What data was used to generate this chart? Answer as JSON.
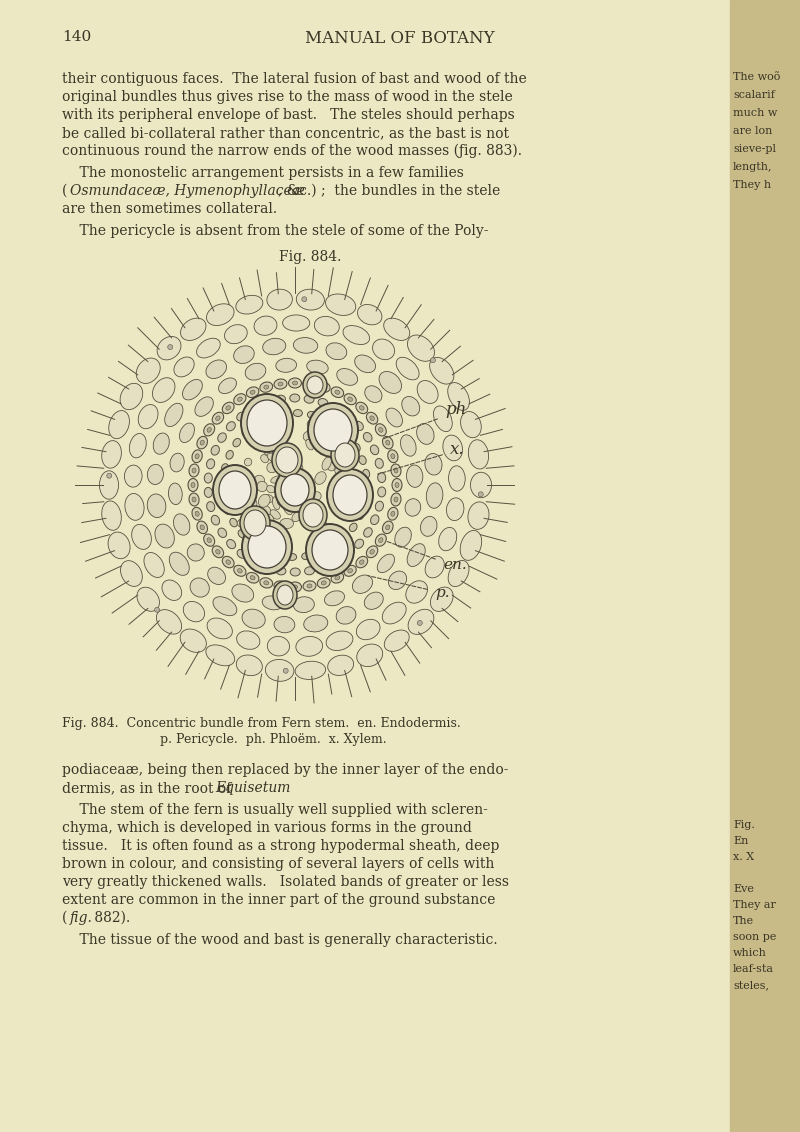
{
  "background_color": "#ede8c4",
  "page_color": "#ede8c4",
  "right_strip_color": "#c8bb88",
  "page_number": "140",
  "header": "MANUAL OF BOTANY",
  "fig_label": "Fig. 884.",
  "fig_caption_line1": "Fig. 884.  Concentric bundle from Fern stem.  en. Endodermis.",
  "fig_caption_line2": "p. Pericycle.  ph. Phloëm.  x. Xylem.",
  "text_color": "#3a3525",
  "line_color": "#5a5040",
  "label_ph": "ph",
  "label_x": "x.",
  "label_en": "en.",
  "label_p": "p.",
  "page_bg": "#ede8c4",
  "right_bg": "#c8bb88"
}
